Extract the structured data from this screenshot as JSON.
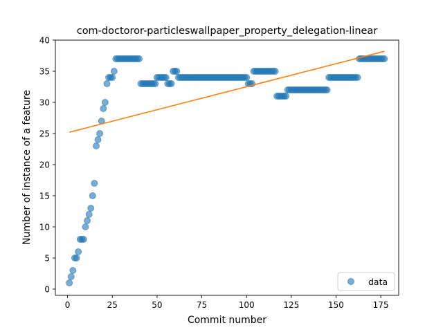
{
  "chart_data": {
    "type": "scatter",
    "title": "com-doctoror-particleswallpaper_property_delegation-linear",
    "xlabel": "Commit number",
    "ylabel": "Number of instance of a feature",
    "xlim": [
      -6.8,
      185
    ],
    "ylim": [
      -1,
      40
    ],
    "xticks": [
      0,
      25,
      50,
      75,
      100,
      125,
      150,
      175
    ],
    "yticks": [
      0,
      5,
      10,
      15,
      20,
      25,
      30,
      35,
      40
    ],
    "legend": {
      "label": "data",
      "placement": "lower-right"
    },
    "colors": {
      "data": "#1f77b4",
      "fit": "#ff7f0e"
    },
    "series": [
      {
        "name": "data",
        "points": [
          [
            1,
            1
          ],
          [
            2,
            2
          ],
          [
            3,
            3
          ],
          [
            4,
            5
          ],
          [
            5,
            5
          ],
          [
            6,
            6
          ],
          [
            7,
            8
          ],
          [
            8,
            8
          ],
          [
            9,
            8
          ],
          [
            10,
            10
          ],
          [
            11,
            11
          ],
          [
            12,
            12
          ],
          [
            13,
            13
          ],
          [
            14,
            15
          ],
          [
            15,
            17
          ],
          [
            16,
            23
          ],
          [
            17,
            24
          ],
          [
            18,
            25
          ],
          [
            19,
            27
          ],
          [
            20,
            29
          ],
          [
            21,
            30
          ],
          [
            22,
            33
          ],
          [
            23,
            34
          ],
          [
            24,
            34
          ],
          [
            25,
            34
          ],
          [
            26,
            35
          ],
          [
            27,
            37
          ],
          [
            28,
            37
          ],
          [
            29,
            37
          ],
          [
            30,
            37
          ],
          [
            31,
            37
          ],
          [
            32,
            37
          ],
          [
            33,
            37
          ],
          [
            34,
            37
          ],
          [
            35,
            37
          ],
          [
            36,
            37
          ],
          [
            37,
            37
          ],
          [
            38,
            37
          ],
          [
            39,
            37
          ],
          [
            40,
            37
          ],
          [
            41,
            33
          ],
          [
            42,
            33
          ],
          [
            43,
            33
          ],
          [
            44,
            33
          ],
          [
            45,
            33
          ],
          [
            46,
            33
          ],
          [
            47,
            33
          ],
          [
            48,
            33
          ],
          [
            49,
            33
          ],
          [
            50,
            34
          ],
          [
            51,
            34
          ],
          [
            52,
            34
          ],
          [
            53,
            34
          ],
          [
            54,
            34
          ],
          [
            55,
            34
          ],
          [
            56,
            33
          ],
          [
            57,
            33
          ],
          [
            58,
            33
          ],
          [
            59,
            35
          ],
          [
            60,
            35
          ],
          [
            61,
            35
          ],
          [
            62,
            34
          ],
          [
            63,
            34
          ],
          [
            64,
            34
          ],
          [
            65,
            34
          ],
          [
            66,
            34
          ],
          [
            67,
            34
          ],
          [
            68,
            34
          ],
          [
            69,
            34
          ],
          [
            70,
            34
          ],
          [
            71,
            34
          ],
          [
            72,
            34
          ],
          [
            73,
            34
          ],
          [
            74,
            34
          ],
          [
            75,
            34
          ],
          [
            76,
            34
          ],
          [
            77,
            34
          ],
          [
            78,
            34
          ],
          [
            79,
            34
          ],
          [
            80,
            34
          ],
          [
            81,
            34
          ],
          [
            82,
            34
          ],
          [
            83,
            34
          ],
          [
            84,
            34
          ],
          [
            85,
            34
          ],
          [
            86,
            34
          ],
          [
            87,
            34
          ],
          [
            88,
            34
          ],
          [
            89,
            34
          ],
          [
            90,
            34
          ],
          [
            91,
            34
          ],
          [
            92,
            34
          ],
          [
            93,
            34
          ],
          [
            94,
            34
          ],
          [
            95,
            34
          ],
          [
            96,
            34
          ],
          [
            97,
            34
          ],
          [
            98,
            34
          ],
          [
            99,
            34
          ],
          [
            100,
            34
          ],
          [
            101,
            33
          ],
          [
            102,
            33
          ],
          [
            103,
            33
          ],
          [
            104,
            35
          ],
          [
            105,
            35
          ],
          [
            106,
            35
          ],
          [
            107,
            35
          ],
          [
            108,
            35
          ],
          [
            109,
            35
          ],
          [
            110,
            35
          ],
          [
            111,
            35
          ],
          [
            112,
            35
          ],
          [
            113,
            35
          ],
          [
            114,
            35
          ],
          [
            115,
            35
          ],
          [
            116,
            35
          ],
          [
            117,
            31
          ],
          [
            118,
            31
          ],
          [
            119,
            31
          ],
          [
            120,
            31
          ],
          [
            121,
            31
          ],
          [
            122,
            31
          ],
          [
            123,
            32
          ],
          [
            124,
            32
          ],
          [
            125,
            32
          ],
          [
            126,
            32
          ],
          [
            127,
            32
          ],
          [
            128,
            32
          ],
          [
            129,
            32
          ],
          [
            130,
            32
          ],
          [
            131,
            32
          ],
          [
            132,
            32
          ],
          [
            133,
            32
          ],
          [
            134,
            32
          ],
          [
            135,
            32
          ],
          [
            136,
            32
          ],
          [
            137,
            32
          ],
          [
            138,
            32
          ],
          [
            139,
            32
          ],
          [
            140,
            32
          ],
          [
            141,
            32
          ],
          [
            142,
            32
          ],
          [
            143,
            32
          ],
          [
            144,
            32
          ],
          [
            145,
            32
          ],
          [
            146,
            34
          ],
          [
            147,
            34
          ],
          [
            148,
            34
          ],
          [
            149,
            34
          ],
          [
            150,
            34
          ],
          [
            151,
            34
          ],
          [
            152,
            34
          ],
          [
            153,
            34
          ],
          [
            154,
            34
          ],
          [
            155,
            34
          ],
          [
            156,
            34
          ],
          [
            157,
            34
          ],
          [
            158,
            34
          ],
          [
            159,
            34
          ],
          [
            160,
            34
          ],
          [
            161,
            34
          ],
          [
            162,
            34
          ],
          [
            163,
            37
          ],
          [
            164,
            37
          ],
          [
            165,
            37
          ],
          [
            166,
            37
          ],
          [
            167,
            37
          ],
          [
            168,
            37
          ],
          [
            169,
            37
          ],
          [
            170,
            37
          ],
          [
            171,
            37
          ],
          [
            172,
            37
          ],
          [
            173,
            37
          ],
          [
            174,
            37
          ],
          [
            175,
            37
          ],
          [
            176,
            37
          ],
          [
            177,
            37
          ]
        ]
      },
      {
        "name": "linear fit",
        "type": "line",
        "x": [
          1,
          177
        ],
        "y": [
          25.2,
          38.2
        ]
      }
    ]
  }
}
